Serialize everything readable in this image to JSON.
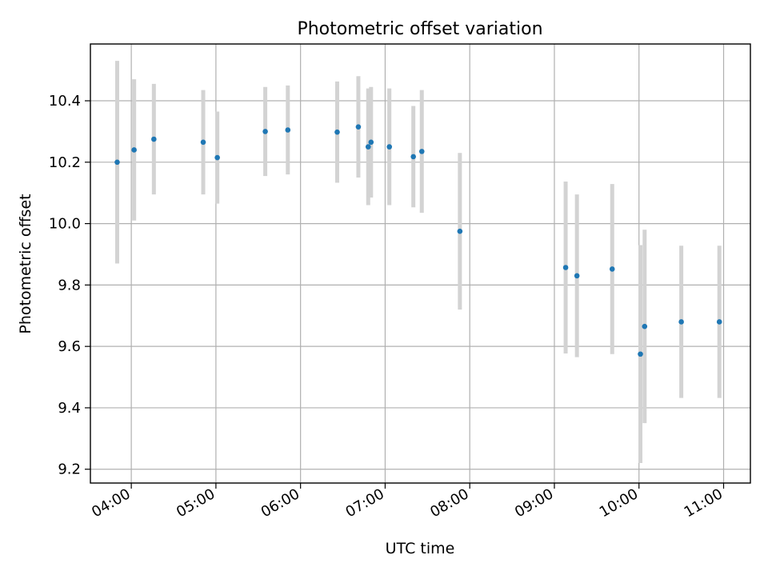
{
  "chart_data": {
    "type": "scatter",
    "title": "Photometric offset variation",
    "xlabel": "UTC time",
    "ylabel": "Photometric offset",
    "x_ticks": [
      "04:00",
      "05:00",
      "06:00",
      "07:00",
      "08:00",
      "09:00",
      "10:00",
      "11:00"
    ],
    "y_ticks": [
      "9.2",
      "9.4",
      "9.6",
      "9.8",
      "10.0",
      "10.2",
      "10.4"
    ],
    "xlim": [
      "03:31",
      "11:19"
    ],
    "ylim": [
      9.155,
      10.585
    ],
    "grid": true,
    "errorbar_color": "#d3d3d3",
    "marker_color": "#1f77b4",
    "points": [
      {
        "x": "03:50",
        "y": 10.2,
        "err": 0.33
      },
      {
        "x": "04:02",
        "y": 10.24,
        "err": 0.23
      },
      {
        "x": "04:16",
        "y": 10.275,
        "err": 0.18
      },
      {
        "x": "04:51",
        "y": 10.265,
        "err": 0.17
      },
      {
        "x": "05:01",
        "y": 10.215,
        "err": 0.15
      },
      {
        "x": "05:35",
        "y": 10.3,
        "err": 0.145
      },
      {
        "x": "05:51",
        "y": 10.305,
        "err": 0.145
      },
      {
        "x": "06:26",
        "y": 10.298,
        "err": 0.165
      },
      {
        "x": "06:41",
        "y": 10.315,
        "err": 0.165
      },
      {
        "x": "06:48",
        "y": 10.25,
        "err": 0.19
      },
      {
        "x": "06:50",
        "y": 10.265,
        "err": 0.18
      },
      {
        "x": "07:03",
        "y": 10.25,
        "err": 0.19
      },
      {
        "x": "07:20",
        "y": 10.218,
        "err": 0.165
      },
      {
        "x": "07:26",
        "y": 10.235,
        "err": 0.2
      },
      {
        "x": "07:53",
        "y": 9.975,
        "err": 0.255
      },
      {
        "x": "09:08",
        "y": 9.857,
        "err": 0.28
      },
      {
        "x": "09:16",
        "y": 9.83,
        "err": 0.265
      },
      {
        "x": "09:41",
        "y": 9.852,
        "err": 0.277
      },
      {
        "x": "10:01",
        "y": 9.575,
        "err": 0.355
      },
      {
        "x": "10:04",
        "y": 9.665,
        "err": 0.315
      },
      {
        "x": "10:30",
        "y": 9.68,
        "err": 0.248
      },
      {
        "x": "10:57",
        "y": 9.68,
        "err": 0.248
      }
    ]
  }
}
